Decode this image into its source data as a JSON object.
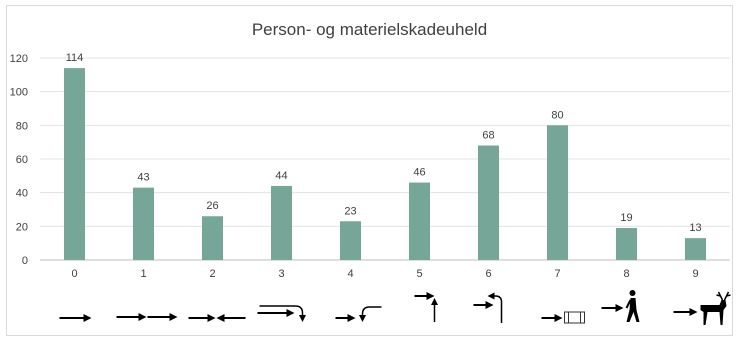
{
  "chart_data": {
    "type": "bar",
    "title": "Person- og materielskadeuheld",
    "xlabel": "",
    "ylabel": "",
    "categories": [
      "0",
      "1",
      "2",
      "3",
      "4",
      "5",
      "6",
      "7",
      "8",
      "9"
    ],
    "values": [
      114,
      43,
      26,
      44,
      23,
      46,
      68,
      80,
      19,
      13
    ],
    "ylim": [
      0,
      120
    ],
    "yticks": [
      0,
      20,
      40,
      60,
      80,
      100,
      120
    ],
    "grid": true,
    "legend": "none",
    "bar_color": "#76a697",
    "category_icons": [
      "straight-arrow-icon",
      "following-vehicles-icon",
      "opposing-vehicles-icon",
      "overtaking-turn-icon",
      "left-turn-icon",
      "crossing-paths-icon",
      "turn-crossing-icon",
      "parked-vehicle-icon",
      "pedestrian-icon",
      "deer-icon"
    ]
  }
}
